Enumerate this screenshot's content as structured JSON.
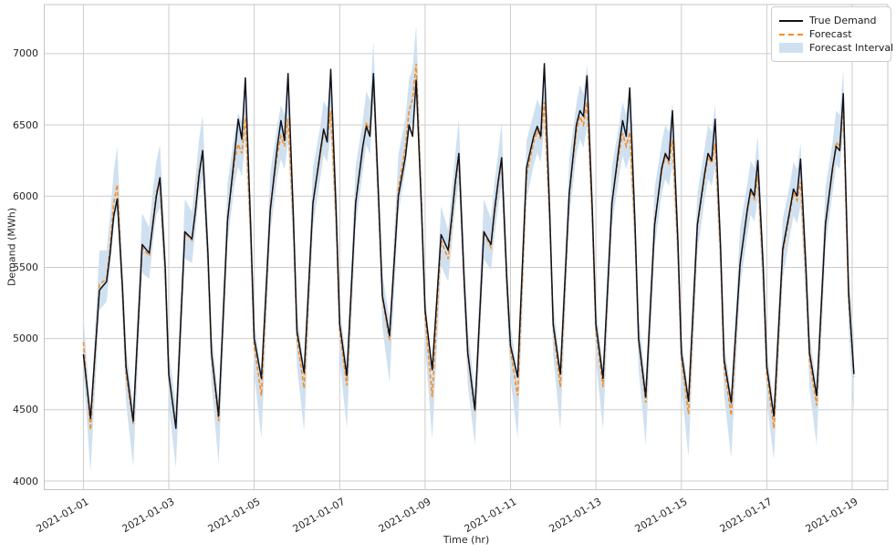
{
  "axes": {
    "x_title": "Time (hr)",
    "y_title": "Demand (MWh)"
  },
  "legend": {
    "true_demand": "True Demand",
    "forecast": "Forecast",
    "interval": "Forecast Interval"
  },
  "chart_data": {
    "type": "line",
    "title": "",
    "xlabel": "Time (hr)",
    "ylabel": "Demand (MWh)",
    "grid": true,
    "legend_position": "upper right",
    "series_names": [
      "True Demand",
      "Forecast",
      "Forecast Interval"
    ],
    "y_ticks": [
      4000,
      4500,
      5000,
      5500,
      6000,
      6500,
      7000
    ],
    "ylim": [
      3939,
      7345
    ],
    "x_tick_days": [
      1,
      3,
      5,
      7,
      9,
      11,
      13,
      15,
      17,
      19
    ],
    "x_tick_labels": [
      "2021-01-01",
      "2021-01-03",
      "2021-01-05",
      "2021-01-07",
      "2021-01-09",
      "2021-01-11",
      "2021-01-13",
      "2021-01-15",
      "2021-01-17",
      "2021-01-19"
    ],
    "xlim_hours": [
      -22,
      452
    ],
    "hours_template": [
      0,
      4,
      9,
      13,
      15,
      17,
      19,
      22
    ],
    "colors": {
      "true_demand": "#10101a",
      "forecast": "#fb8c1e",
      "interval": "#cfe1f0",
      "grid": "#cccccc",
      "spine": "#c4c4c4"
    },
    "days": [
      {
        "date": "2021-01-01",
        "true_demand": [
          4890,
          4440,
          5340,
          5400,
          5600,
          5860,
          5980,
          5350
        ],
        "forecast": [
          4975,
          4360,
          5380,
          5420,
          5650,
          5950,
          6080,
          5320
        ],
        "interval_lo": [
          4775,
          4060,
          5200,
          5260,
          5490,
          5790,
          5910,
          5120
        ],
        "interval_hi": [
          5155,
          4500,
          5620,
          5620,
          5870,
          6170,
          6350,
          5500
        ]
      },
      {
        "date": "2021-01-02",
        "true_demand": [
          4800,
          4420,
          5660,
          5600,
          5800,
          6000,
          6130,
          5500
        ],
        "forecast": [
          4750,
          4400,
          5640,
          5580,
          5820,
          6030,
          6090,
          5470
        ],
        "interval_lo": [
          4550,
          4100,
          5460,
          5420,
          5660,
          5870,
          5920,
          5270
        ],
        "interval_hi": [
          4930,
          4540,
          5880,
          5780,
          6040,
          6250,
          6360,
          5650
        ]
      },
      {
        "date": "2021-01-03",
        "true_demand": [
          4750,
          4370,
          5750,
          5700,
          5900,
          6150,
          6320,
          5600
        ],
        "forecast": [
          4730,
          4390,
          5740,
          5690,
          5920,
          6180,
          6300,
          5570
        ],
        "interval_lo": [
          4530,
          4090,
          5560,
          5530,
          5760,
          6020,
          6130,
          5370
        ],
        "interval_hi": [
          4910,
          4530,
          5980,
          5890,
          6140,
          6400,
          6570,
          5750
        ]
      },
      {
        "date": "2021-01-04",
        "true_demand": [
          4900,
          4455,
          5830,
          6300,
          6540,
          6400,
          6830,
          5800
        ],
        "forecast": [
          4880,
          4420,
          5850,
          6250,
          6365,
          6300,
          6550,
          5750
        ],
        "interval_lo": [
          4680,
          4120,
          5670,
          6090,
          6205,
          6140,
          6380,
          5550
        ],
        "interval_hi": [
          5060,
          4560,
          6090,
          6450,
          6585,
          6520,
          6820,
          5930
        ]
      },
      {
        "date": "2021-01-05",
        "true_demand": [
          5000,
          4720,
          5900,
          6350,
          6530,
          6390,
          6860,
          5850
        ],
        "forecast": [
          4950,
          4600,
          5920,
          6300,
          6420,
          6350,
          6545,
          5800
        ],
        "interval_lo": [
          4750,
          4300,
          5740,
          6140,
          6260,
          6190,
          6375,
          5600
        ],
        "interval_hi": [
          5130,
          4740,
          6160,
          6500,
          6640,
          6570,
          6815,
          5980
        ]
      },
      {
        "date": "2021-01-06",
        "true_demand": [
          5050,
          4760,
          5950,
          6300,
          6470,
          6380,
          6890,
          5900
        ],
        "forecast": [
          5000,
          4650,
          5960,
          6280,
          6450,
          6400,
          6600,
          5850
        ],
        "interval_lo": [
          4800,
          4350,
          5780,
          6120,
          6290,
          6240,
          6430,
          5650
        ],
        "interval_hi": [
          5180,
          4790,
          6200,
          6480,
          6670,
          6620,
          6870,
          6030
        ]
      },
      {
        "date": "2021-01-07",
        "true_demand": [
          5100,
          4740,
          5950,
          6350,
          6490,
          6420,
          6860,
          5950
        ],
        "forecast": [
          5050,
          4670,
          5970,
          6330,
          6520,
          6450,
          6820,
          5900
        ],
        "interval_lo": [
          4850,
          4370,
          5790,
          6170,
          6360,
          6290,
          6650,
          5700
        ],
        "interval_hi": [
          5230,
          4810,
          6210,
          6530,
          6740,
          6670,
          7090,
          6080
        ]
      },
      {
        "date": "2021-01-08",
        "true_demand": [
          5300,
          5020,
          6000,
          6280,
          6500,
          6420,
          6815,
          5900
        ],
        "forecast": [
          5280,
          4990,
          6050,
          6350,
          6600,
          6680,
          6930,
          5950
        ],
        "interval_lo": [
          5080,
          4690,
          5870,
          6190,
          6440,
          6520,
          6760,
          5750
        ],
        "interval_hi": [
          5460,
          5130,
          6290,
          6550,
          6820,
          6900,
          7200,
          6130
        ]
      },
      {
        "date": "2021-01-09",
        "true_demand": [
          5200,
          4780,
          5730,
          5620,
          5850,
          6100,
          6300,
          5400
        ],
        "forecast": [
          5150,
          4590,
          5690,
          5560,
          5820,
          6080,
          6270,
          5380
        ],
        "interval_lo": [
          4950,
          4290,
          5510,
          5400,
          5660,
          5920,
          6100,
          5180
        ],
        "interval_hi": [
          5330,
          4730,
          5930,
          5760,
          6040,
          6300,
          6540,
          5560
        ]
      },
      {
        "date": "2021-01-10",
        "true_demand": [
          4900,
          4500,
          5750,
          5660,
          5900,
          6100,
          6270,
          5400
        ],
        "forecast": [
          4880,
          4490,
          5740,
          5640,
          5880,
          6080,
          6250,
          5380
        ],
        "interval_lo": [
          4680,
          4250,
          5560,
          5480,
          5720,
          5920,
          6080,
          5180
        ],
        "interval_hi": [
          5060,
          4630,
          5980,
          5840,
          6100,
          6300,
          6520,
          5560
        ]
      },
      {
        "date": "2021-01-11",
        "true_demand": [
          4950,
          4730,
          6200,
          6420,
          6490,
          6420,
          6930,
          5900
        ],
        "forecast": [
          4920,
          4600,
          6150,
          6380,
          6460,
          6400,
          6660,
          5850
        ],
        "interval_lo": [
          4720,
          4300,
          5970,
          6220,
          6300,
          6240,
          6490,
          5650
        ],
        "interval_hi": [
          5100,
          4740,
          6390,
          6580,
          6680,
          6620,
          6930,
          6030
        ]
      },
      {
        "date": "2021-01-12",
        "true_demand": [
          5100,
          4750,
          6020,
          6500,
          6600,
          6560,
          6845,
          5900
        ],
        "forecast": [
          5080,
          4660,
          6020,
          6450,
          6560,
          6500,
          6660,
          5850
        ],
        "interval_lo": [
          4880,
          4360,
          5840,
          6290,
          6400,
          6340,
          6490,
          5650
        ],
        "interval_hi": [
          5260,
          4800,
          6260,
          6650,
          6780,
          6720,
          6930,
          6030
        ]
      },
      {
        "date": "2021-01-13",
        "true_demand": [
          5100,
          4720,
          5950,
          6350,
          6530,
          6420,
          6760,
          5800
        ],
        "forecast": [
          5050,
          4660,
          5970,
          6300,
          6440,
          6350,
          6450,
          5750
        ],
        "interval_lo": [
          4850,
          4360,
          5790,
          6140,
          6280,
          6190,
          6280,
          5550
        ],
        "interval_hi": [
          5230,
          4800,
          6210,
          6500,
          6660,
          6570,
          6720,
          5930
        ]
      },
      {
        "date": "2021-01-14",
        "true_demand": [
          5000,
          4590,
          5800,
          6200,
          6300,
          6250,
          6600,
          5700
        ],
        "forecast": [
          4980,
          4550,
          5820,
          6180,
          6280,
          6230,
          6390,
          5650
        ],
        "interval_lo": [
          4780,
          4250,
          5640,
          6020,
          6120,
          6070,
          6220,
          5450
        ],
        "interval_hi": [
          5160,
          4690,
          6060,
          6380,
          6500,
          6450,
          6660,
          5830
        ]
      },
      {
        "date": "2021-01-15",
        "true_demand": [
          4900,
          4560,
          5800,
          6150,
          6300,
          6250,
          6540,
          5650
        ],
        "forecast": [
          4850,
          4470,
          5780,
          6130,
          6280,
          6230,
          6370,
          5600
        ],
        "interval_lo": [
          4650,
          4170,
          5600,
          5970,
          6120,
          6070,
          6200,
          5400
        ],
        "interval_hi": [
          5030,
          4610,
          6020,
          6330,
          6500,
          6450,
          6640,
          5780
        ]
      },
      {
        "date": "2021-01-16",
        "true_demand": [
          4850,
          4550,
          5520,
          5900,
          6050,
          6000,
          6250,
          5500
        ],
        "forecast": [
          4800,
          4460,
          5540,
          5880,
          6030,
          5980,
          6150,
          5450
        ],
        "interval_lo": [
          4600,
          4160,
          5360,
          5720,
          5870,
          5820,
          5980,
          5250
        ],
        "interval_hi": [
          4980,
          4600,
          5780,
          6080,
          6250,
          6200,
          6420,
          5630
        ]
      },
      {
        "date": "2021-01-17",
        "true_demand": [
          4800,
          4455,
          5630,
          5900,
          6050,
          6000,
          6260,
          5500
        ],
        "forecast": [
          4750,
          4370,
          5600,
          5880,
          6020,
          5970,
          6100,
          5450
        ],
        "interval_lo": [
          4550,
          4150,
          5420,
          5720,
          5860,
          5810,
          5930,
          5250
        ],
        "interval_hi": [
          4930,
          4510,
          5840,
          6080,
          6240,
          6190,
          6370,
          5630
        ]
      },
      {
        "date": "2021-01-18",
        "true_demand": [
          4900,
          4600,
          5800,
          6200,
          6350,
          6320,
          6720,
          5320
        ],
        "forecast": [
          4850,
          4530,
          5820,
          6180,
          6380,
          6350,
          6620,
          5270
        ],
        "interval_lo": [
          4650,
          4250,
          5640,
          6020,
          6220,
          6190,
          6450,
          5070
        ],
        "interval_hi": [
          5030,
          4670,
          6060,
          6380,
          6600,
          6570,
          6890,
          5450
        ]
      }
    ],
    "end_point": {
      "hour": 433,
      "date": "2021-01-19",
      "true_demand": 4750,
      "forecast": 4730,
      "interval_lo": 4450,
      "interval_hi": 5020
    }
  }
}
